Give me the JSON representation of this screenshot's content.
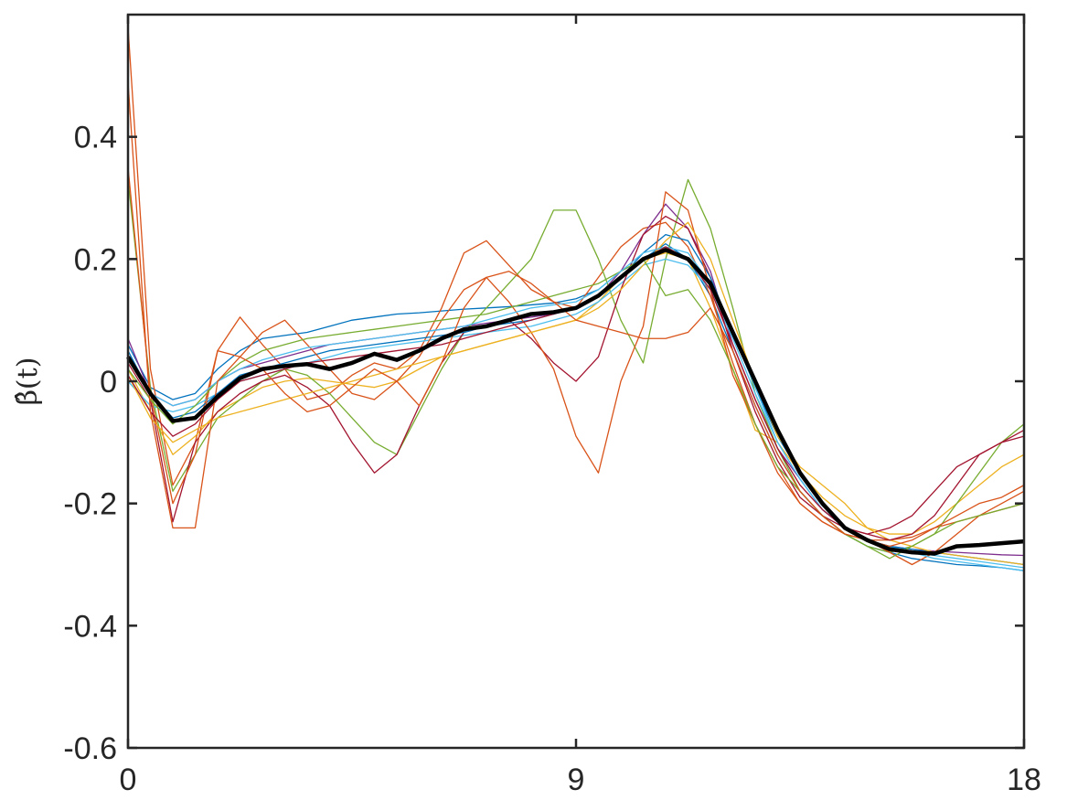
{
  "chart_data": {
    "type": "line",
    "title": "",
    "xlabel": "",
    "ylabel": "β̂(t)",
    "xlim": [
      0,
      18
    ],
    "ylim": [
      -0.6,
      0.6
    ],
    "xticks": [
      0,
      9,
      18
    ],
    "xtick_labels": [
      "0",
      "9",
      "18"
    ],
    "yticks": [
      -0.6,
      -0.4,
      -0.2,
      0,
      0.2,
      0.4
    ],
    "ytick_labels": [
      "-0.6",
      "-0.4",
      "-0.2",
      "0",
      "0.2",
      "0.4"
    ],
    "grid": false,
    "box": true,
    "x": [
      0,
      0.45,
      0.9,
      1.35,
      1.8,
      2.25,
      2.7,
      3.15,
      3.6,
      4.05,
      4.5,
      4.95,
      5.4,
      5.85,
      6.3,
      6.75,
      7.2,
      7.65,
      8.1,
      8.55,
      9.0,
      9.45,
      9.9,
      10.35,
      10.8,
      11.25,
      11.7,
      12.15,
      12.6,
      13.05,
      13.5,
      13.95,
      14.4,
      14.85,
      15.3,
      15.75,
      16.2,
      16.65,
      17.1,
      17.55,
      18.0
    ],
    "mean_series": {
      "color": "#000000",
      "values": [
        0.04,
        -0.02,
        -0.065,
        -0.06,
        -0.025,
        0.005,
        0.02,
        0.025,
        0.028,
        0.02,
        0.03,
        0.045,
        0.035,
        0.05,
        0.07,
        0.085,
        0.09,
        0.1,
        0.11,
        0.113,
        0.12,
        0.14,
        0.17,
        0.2,
        0.215,
        0.2,
        0.16,
        0.08,
        0.0,
        -0.08,
        -0.15,
        -0.2,
        -0.24,
        -0.26,
        -0.275,
        -0.28,
        -0.282,
        -0.27,
        -0.268,
        -0.265,
        -0.262
      ]
    },
    "series": [
      {
        "color": "#0072BD",
        "values": [
          0.06,
          -0.01,
          -0.03,
          -0.02,
          0.02,
          0.05,
          0.07,
          0.075,
          0.08,
          0.09,
          0.1,
          0.105,
          0.11,
          0.112,
          0.115,
          0.118,
          0.12,
          0.122,
          0.125,
          0.128,
          0.135,
          0.15,
          0.18,
          0.2,
          0.225,
          0.2,
          0.14,
          0.05,
          -0.04,
          -0.12,
          -0.18,
          -0.22,
          -0.25,
          -0.27,
          -0.28,
          -0.29,
          -0.295,
          -0.3,
          -0.302,
          -0.305,
          -0.31
        ]
      },
      {
        "color": "#D95319",
        "values": [
          0.58,
          0.02,
          -0.17,
          -0.1,
          0.05,
          0.105,
          0.06,
          0.02,
          -0.03,
          -0.02,
          0.01,
          0.03,
          0.02,
          0.05,
          0.12,
          0.21,
          0.23,
          0.19,
          0.15,
          0.13,
          0.12,
          0.17,
          0.22,
          0.25,
          0.26,
          0.22,
          0.14,
          0.03,
          -0.07,
          -0.15,
          -0.2,
          -0.23,
          -0.25,
          -0.26,
          -0.26,
          -0.255,
          -0.24,
          -0.23,
          -0.22,
          -0.21,
          -0.2
        ]
      },
      {
        "color": "#EDB120",
        "values": [
          0.02,
          -0.05,
          -0.12,
          -0.09,
          -0.05,
          -0.03,
          -0.01,
          0.0,
          0.005,
          0.0,
          -0.005,
          -0.01,
          0.0,
          0.02,
          0.04,
          0.05,
          0.06,
          0.07,
          0.08,
          0.09,
          0.1,
          0.13,
          0.17,
          0.2,
          0.21,
          0.2,
          0.12,
          0.02,
          -0.08,
          -0.1,
          -0.15,
          -0.19,
          -0.22,
          -0.24,
          -0.25,
          -0.25,
          -0.23,
          -0.2,
          -0.17,
          -0.14,
          -0.12
        ]
      },
      {
        "color": "#7E2F8E",
        "values": [
          0.07,
          -0.02,
          -0.04,
          -0.03,
          0.0,
          0.02,
          0.03,
          0.04,
          0.05,
          0.06,
          0.065,
          0.07,
          0.075,
          0.08,
          0.085,
          0.09,
          0.095,
          0.1,
          0.105,
          0.11,
          0.12,
          0.14,
          0.18,
          0.24,
          0.29,
          0.25,
          0.18,
          0.06,
          -0.03,
          -0.11,
          -0.16,
          -0.21,
          -0.24,
          -0.26,
          -0.27,
          -0.275,
          -0.278,
          -0.28,
          -0.282,
          -0.284,
          -0.285
        ]
      },
      {
        "color": "#77AC30",
        "values": [
          0.33,
          -0.01,
          -0.18,
          -0.12,
          -0.06,
          -0.03,
          0.0,
          0.02,
          0.01,
          -0.02,
          -0.06,
          -0.1,
          -0.12,
          -0.05,
          0.02,
          0.08,
          0.12,
          0.16,
          0.2,
          0.28,
          0.28,
          0.2,
          0.1,
          0.03,
          0.2,
          0.33,
          0.25,
          0.12,
          -0.02,
          -0.11,
          -0.18,
          -0.22,
          -0.25,
          -0.27,
          -0.28,
          -0.27,
          -0.25,
          -0.2,
          -0.15,
          -0.1,
          -0.07
        ]
      },
      {
        "color": "#4DBEEE",
        "values": [
          0.0,
          -0.04,
          -0.05,
          -0.04,
          -0.02,
          0.0,
          0.01,
          0.02,
          0.03,
          0.04,
          0.05,
          0.055,
          0.06,
          0.065,
          0.07,
          0.075,
          0.08,
          0.085,
          0.09,
          0.1,
          0.11,
          0.13,
          0.16,
          0.19,
          0.2,
          0.19,
          0.15,
          0.07,
          -0.02,
          -0.1,
          -0.16,
          -0.21,
          -0.24,
          -0.26,
          -0.27,
          -0.28,
          -0.285,
          -0.29,
          -0.295,
          -0.3,
          -0.305
        ]
      },
      {
        "color": "#A2142F",
        "values": [
          0.03,
          -0.03,
          -0.23,
          -0.1,
          -0.05,
          -0.02,
          0.0,
          0.01,
          -0.01,
          -0.04,
          -0.1,
          -0.15,
          -0.12,
          -0.04,
          0.03,
          0.08,
          0.09,
          0.1,
          0.07,
          0.03,
          0.0,
          0.04,
          0.15,
          0.24,
          0.27,
          0.25,
          0.17,
          0.05,
          -0.05,
          -0.13,
          -0.19,
          -0.22,
          -0.24,
          -0.25,
          -0.24,
          -0.22,
          -0.18,
          -0.14,
          -0.12,
          -0.1,
          -0.08
        ]
      },
      {
        "color": "#0072BD",
        "values": [
          0.05,
          -0.02,
          -0.06,
          -0.05,
          -0.02,
          0.01,
          0.02,
          0.03,
          0.04,
          0.05,
          0.055,
          0.06,
          0.065,
          0.07,
          0.075,
          0.08,
          0.09,
          0.095,
          0.1,
          0.11,
          0.12,
          0.14,
          0.17,
          0.21,
          0.24,
          0.23,
          0.17,
          0.08,
          -0.01,
          -0.09,
          -0.15,
          -0.2,
          -0.24,
          -0.26,
          -0.27,
          -0.275,
          -0.28,
          -0.285,
          -0.29,
          -0.295,
          -0.3
        ]
      },
      {
        "color": "#D95319",
        "values": [
          0.35,
          -0.02,
          -0.2,
          -0.12,
          0.05,
          0.04,
          0.08,
          0.1,
          0.06,
          0.02,
          -0.02,
          -0.03,
          0.0,
          0.04,
          0.1,
          0.15,
          0.17,
          0.13,
          0.08,
          0.02,
          -0.09,
          -0.15,
          0.0,
          0.09,
          0.31,
          0.28,
          0.15,
          0.01,
          -0.07,
          -0.14,
          -0.2,
          -0.23,
          -0.25,
          -0.26,
          -0.28,
          -0.3,
          -0.28,
          -0.25,
          -0.22,
          -0.2,
          -0.18
        ]
      },
      {
        "color": "#EDB120",
        "values": [
          0.01,
          -0.06,
          -0.1,
          -0.08,
          -0.06,
          -0.05,
          -0.04,
          -0.03,
          -0.02,
          -0.01,
          0.0,
          0.01,
          0.02,
          0.03,
          0.04,
          0.05,
          0.06,
          0.07,
          0.08,
          0.09,
          0.1,
          0.12,
          0.15,
          0.19,
          0.23,
          0.26,
          0.2,
          0.1,
          0.0,
          -0.09,
          -0.14,
          -0.17,
          -0.2,
          -0.24,
          -0.26,
          -0.27,
          -0.28,
          -0.285,
          -0.29,
          -0.295,
          -0.3
        ]
      },
      {
        "color": "#77AC30",
        "values": [
          0.02,
          -0.03,
          -0.07,
          -0.04,
          0.0,
          0.03,
          0.05,
          0.06,
          0.07,
          0.075,
          0.08,
          0.085,
          0.09,
          0.095,
          0.1,
          0.105,
          0.11,
          0.12,
          0.13,
          0.14,
          0.15,
          0.16,
          0.18,
          0.2,
          0.14,
          0.15,
          0.1,
          0.02,
          -0.07,
          -0.14,
          -0.18,
          -0.22,
          -0.25,
          -0.27,
          -0.29,
          -0.27,
          -0.25,
          -0.23,
          -0.22,
          -0.21,
          -0.2
        ]
      },
      {
        "color": "#4DBEEE",
        "values": [
          0.04,
          -0.02,
          -0.04,
          -0.03,
          0.0,
          0.02,
          0.035,
          0.045,
          0.055,
          0.06,
          0.065,
          0.07,
          0.075,
          0.08,
          0.085,
          0.09,
          0.1,
          0.11,
          0.12,
          0.125,
          0.13,
          0.15,
          0.18,
          0.21,
          0.22,
          0.21,
          0.16,
          0.08,
          -0.01,
          -0.1,
          -0.16,
          -0.21,
          -0.24,
          -0.26,
          -0.275,
          -0.28,
          -0.29,
          -0.295,
          -0.3,
          -0.305,
          -0.31
        ]
      },
      {
        "color": "#A2142F",
        "values": [
          0.01,
          -0.05,
          -0.09,
          -0.07,
          -0.03,
          0.0,
          0.01,
          0.02,
          0.03,
          0.035,
          0.04,
          0.045,
          0.05,
          0.055,
          0.06,
          0.07,
          0.08,
          0.09,
          0.1,
          0.11,
          0.12,
          0.14,
          0.17,
          0.2,
          0.22,
          0.2,
          0.15,
          0.06,
          -0.03,
          -0.11,
          -0.17,
          -0.21,
          -0.24,
          -0.25,
          -0.26,
          -0.25,
          -0.22,
          -0.17,
          -0.12,
          -0.1,
          -0.09
        ]
      },
      {
        "color": "#D95319",
        "values": [
          0.49,
          -0.05,
          -0.24,
          -0.24,
          0.0,
          0.04,
          0.02,
          -0.02,
          -0.05,
          -0.04,
          -0.01,
          0.02,
          0.0,
          -0.04,
          0.03,
          0.12,
          0.17,
          0.18,
          0.16,
          0.13,
          0.1,
          0.09,
          0.08,
          0.07,
          0.07,
          0.08,
          0.12,
          0.05,
          -0.04,
          -0.12,
          -0.18,
          -0.22,
          -0.25,
          -0.26,
          -0.27,
          -0.26,
          -0.24,
          -0.22,
          -0.2,
          -0.19,
          -0.17
        ]
      }
    ]
  }
}
